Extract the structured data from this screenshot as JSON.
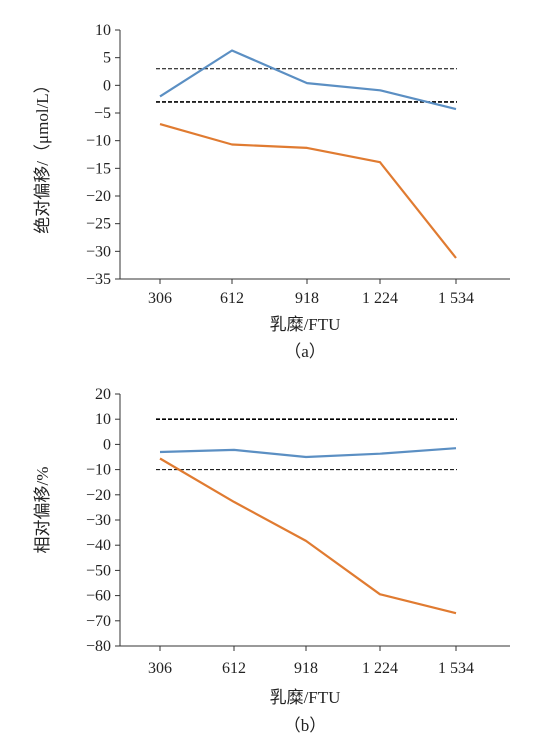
{
  "chart_data": [
    {
      "type": "line",
      "caption": "（a）",
      "xlabel": "乳糜/FTU",
      "ylabel": "绝对偏移/（μmol/L）",
      "categories": [
        "306",
        "612",
        "918",
        "1 224",
        "1 534"
      ],
      "ylim": [
        -35,
        10
      ],
      "yticks": [
        10,
        5,
        0,
        -5,
        -10,
        -15,
        -20,
        -25,
        -30,
        -35
      ],
      "grid": false,
      "reference_lines": [
        3,
        -3
      ],
      "series": [
        {
          "color": "#5b8fc3",
          "values": [
            -2,
            6.3,
            0.4,
            -0.9,
            -4.3
          ]
        },
        {
          "color": "#e07b31",
          "values": [
            -7,
            -10.7,
            -11.3,
            -13.9,
            -31.2
          ]
        }
      ]
    },
    {
      "type": "line",
      "caption": "（b）",
      "xlabel": "乳糜/FTU",
      "ylabel": "相对偏移/%",
      "categories": [
        "306",
        "612",
        "918",
        "1 224",
        "1 534"
      ],
      "ylim": [
        -80,
        20
      ],
      "yticks": [
        20,
        10,
        0,
        -10,
        -20,
        -30,
        -40,
        -50,
        -60,
        -70,
        -80
      ],
      "grid": false,
      "reference_lines": [
        10,
        -10
      ],
      "series": [
        {
          "color": "#5b8fc3",
          "values": [
            -3,
            -2.2,
            -5,
            -3.7,
            -1.5
          ]
        },
        {
          "color": "#e07b31",
          "values": [
            -5.6,
            -22.8,
            -38.3,
            -59.5,
            -67
          ]
        }
      ]
    }
  ]
}
